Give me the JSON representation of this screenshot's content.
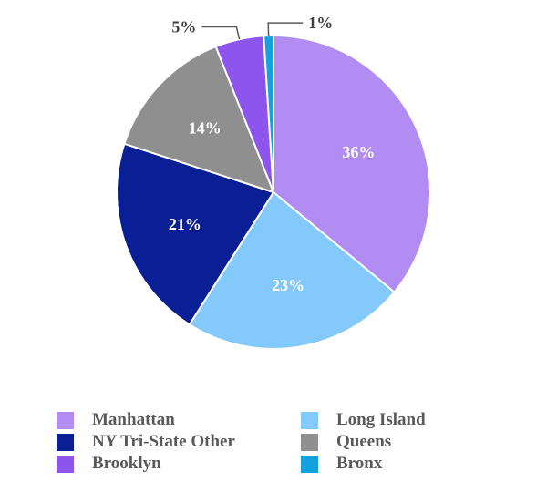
{
  "chart_data": {
    "type": "pie",
    "title": "",
    "slices": [
      {
        "label": "Manhattan",
        "value": 36,
        "value_label": "36%",
        "color": "#b18cf2",
        "label_color": "#ffffff",
        "label_position": "inside"
      },
      {
        "label": "Long Island",
        "value": 23,
        "value_label": "23%",
        "color": "#84c9fb",
        "label_color": "#ffffff",
        "label_position": "inside"
      },
      {
        "label": "NY Tri-State Other",
        "value": 21,
        "value_label": "21%",
        "color": "#0a1e96",
        "label_color": "#ffffff",
        "label_position": "inside"
      },
      {
        "label": "Queens",
        "value": 14,
        "value_label": "14%",
        "color": "#8f8f8f",
        "label_color": "#ffffff",
        "label_position": "inside"
      },
      {
        "label": "Brooklyn",
        "value": 5,
        "value_label": "5%",
        "color": "#8d55ee",
        "label_color": "#404040",
        "label_position": "outside-left"
      },
      {
        "label": "Bronx",
        "value": 1,
        "value_label": "1%",
        "color": "#12a2e0",
        "label_color": "#404040",
        "label_position": "outside-right"
      }
    ],
    "start": "12 o'clock",
    "direction": "clockwise",
    "legend": {
      "placement": "bottom",
      "columns": 2,
      "order": [
        "Manhattan",
        "Long Island",
        "NY Tri-State Other",
        "Queens",
        "Brooklyn",
        "Bronx"
      ]
    }
  }
}
